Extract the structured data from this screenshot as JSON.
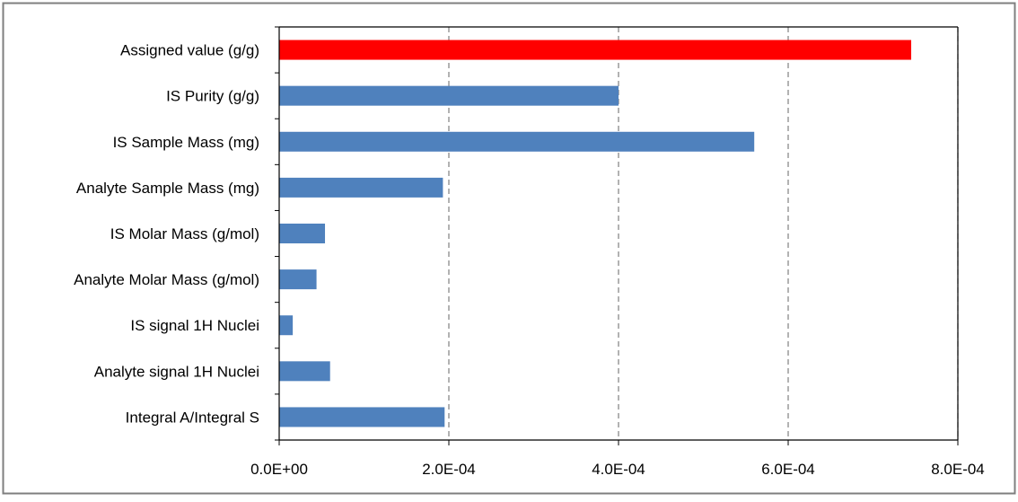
{
  "chart_data": {
    "type": "bar",
    "orientation": "horizontal",
    "title": "",
    "xlabel": "",
    "ylabel": "",
    "xlim": [
      0,
      0.0008
    ],
    "x_ticks": [
      0,
      0.0002,
      0.0004,
      0.0006,
      0.0008
    ],
    "x_tick_labels": [
      "0.0E+00",
      "2.0E-04",
      "4.0E-04",
      "6.0E-04",
      "8.0E-04"
    ],
    "grid": "vertical dashed",
    "legend": "none",
    "categories": [
      "Assigned value (g/g)",
      "IS Purity (g/g)",
      "IS Sample Mass (mg)",
      "Analyte Sample Mass (mg)",
      "IS Molar Mass (g/mol)",
      "Analyte Molar Mass (g/mol)",
      "IS signal 1H Nuclei",
      "Analyte signal 1H Nuclei",
      "Integral A/Integral S"
    ],
    "values": [
      0.000745,
      0.0004,
      0.00056,
      0.000193,
      5.4e-05,
      4.4e-05,
      1.6e-05,
      6e-05,
      0.000195
    ],
    "bar_colors": [
      "#ff0000",
      "#4f81bd",
      "#4f81bd",
      "#4f81bd",
      "#4f81bd",
      "#4f81bd",
      "#4f81bd",
      "#4f81bd",
      "#4f81bd"
    ],
    "frame_color": "#7f7f7f",
    "grid_color": "#808080"
  }
}
